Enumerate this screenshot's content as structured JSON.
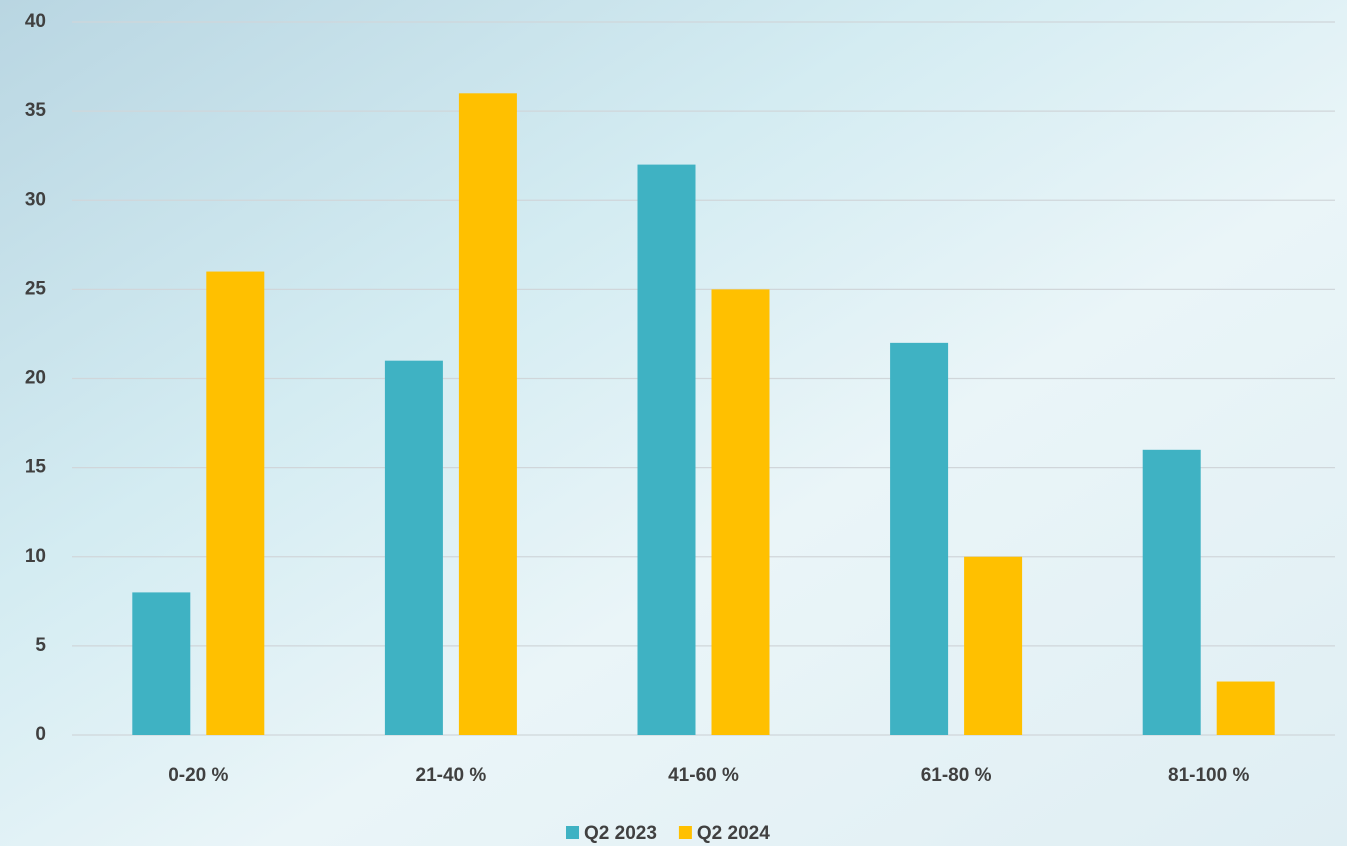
{
  "chart_data": {
    "type": "bar",
    "categories": [
      "0-20 %",
      "21-40 %",
      "41-60 %",
      "61-80 %",
      "81-100 %"
    ],
    "series": [
      {
        "name": "Q2 2023",
        "color": "#3fb2c3",
        "values": [
          8,
          21,
          32,
          22,
          16
        ]
      },
      {
        "name": "Q2 2024",
        "color": "#ffc000",
        "values": [
          26,
          36,
          25,
          10,
          3
        ]
      }
    ],
    "ylim": [
      0,
      40
    ],
    "yticks": [
      0,
      5,
      10,
      15,
      20,
      25,
      30,
      35,
      40
    ],
    "grid": true,
    "legend": "bottom"
  }
}
